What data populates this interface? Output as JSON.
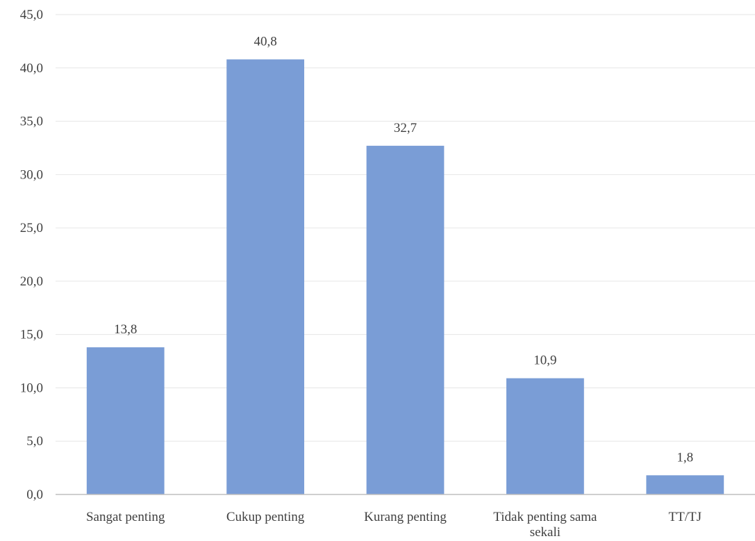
{
  "chart_data": {
    "type": "bar",
    "categories": [
      "Sangat penting",
      "Cukup penting",
      "Kurang penting",
      "Tidak penting sama sekali",
      "TT/TJ"
    ],
    "values": [
      13.8,
      40.8,
      32.7,
      10.9,
      1.8
    ],
    "value_labels": [
      "13,8",
      "40,8",
      "32,7",
      "10,9",
      "1,8"
    ],
    "y_ticks": [
      "0,0",
      "5,0",
      "10,0",
      "15,0",
      "20,0",
      "25,0",
      "30,0",
      "35,0",
      "40,0",
      "45,0"
    ],
    "ylim": [
      0,
      45
    ],
    "y_step": 5,
    "grid": true,
    "legend": "none",
    "bar_color": "#7a9dd6",
    "title": "",
    "xlabel": "",
    "ylabel": ""
  }
}
